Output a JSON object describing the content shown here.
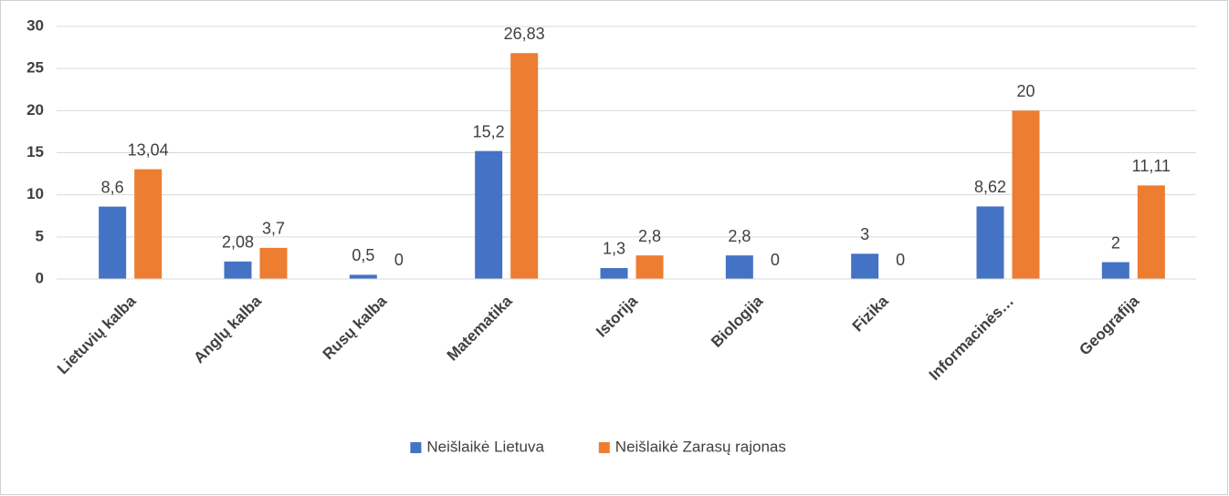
{
  "chart_data": {
    "type": "bar",
    "categories": [
      "Lietuvių kalba",
      "Anglų kalba",
      "Rusų kalba",
      "Matematika",
      "Istorija",
      "Biologija",
      "Fizika",
      "Informacinės…",
      "Geografija"
    ],
    "series": [
      {
        "name": "Neišlaikė Lietuva",
        "color": "#4472c4",
        "values": [
          8.6,
          2.08,
          0.5,
          15.2,
          1.3,
          2.8,
          3,
          8.62,
          2
        ],
        "value_labels": [
          "8,6",
          "2,08",
          "0,5",
          "15,2",
          "1,3",
          "2,8",
          "3",
          "8,62",
          "2"
        ]
      },
      {
        "name": "Neišlaikė Zarasų rajonas",
        "color": "#ed7d31",
        "values": [
          13.04,
          3.7,
          0,
          26.83,
          2.8,
          0,
          0,
          20,
          11.11
        ],
        "value_labels": [
          "13,04",
          "3,7",
          "0",
          "26,83",
          "2,8",
          "0",
          "0",
          "20",
          "11,11"
        ]
      }
    ],
    "ylim": [
      0,
      30
    ],
    "yticks": [
      0,
      5,
      10,
      15,
      20,
      25,
      30
    ],
    "grid": true,
    "legend": "bottom"
  }
}
